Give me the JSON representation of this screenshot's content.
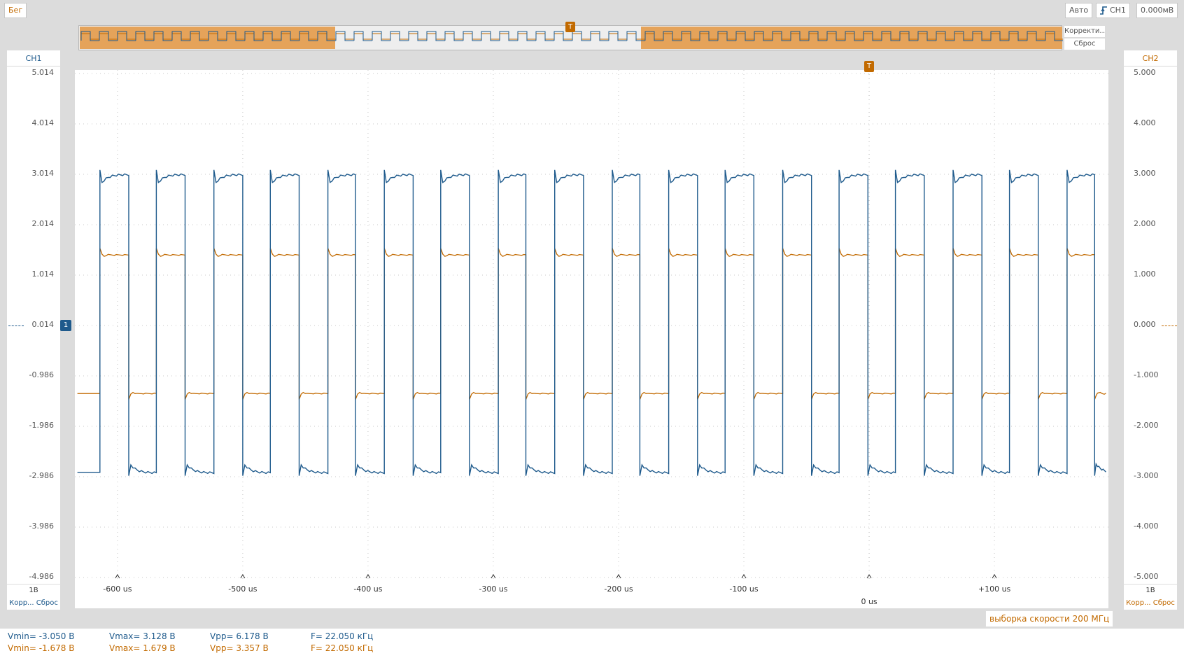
{
  "toolbar": {
    "run_label": "Бег",
    "mode_label": "Авто",
    "trigger_channel": "CH1",
    "trigger_level": "0.000мВ",
    "trigger_icon": "rising-edge-icon"
  },
  "overview": {
    "marker_label": "T",
    "correct_label": "Корректи...",
    "reset_label": "Сброс"
  },
  "channels": {
    "ch1": {
      "label": "CH1",
      "color": "#1e5a8c",
      "ticks": [
        "5.014",
        "4.014",
        "3.014",
        "2.014",
        "1.014",
        "0.014",
        "-0.986",
        "-1.986",
        "-2.986",
        "-3.986",
        "-4.986"
      ],
      "scale": "1В",
      "footer": "Корр... Сброс"
    },
    "ch2": {
      "label": "CH2",
      "color": "#c26a00",
      "ticks": [
        "5.000",
        "4.000",
        "3.000",
        "2.000",
        "1.000",
        "0.000",
        "-1.000",
        "-2.000",
        "-3.000",
        "-4.000",
        "-5.000"
      ],
      "scale": "1В",
      "footer": "Корр... Сброс"
    }
  },
  "plot": {
    "trigger_marker": "T",
    "ground_marker": "1"
  },
  "xaxis": {
    "labels": [
      "-600 us",
      "-500 us",
      "-400 us",
      "-300 us",
      "-200 us",
      "-100 us",
      "0 us",
      "+100 us"
    ]
  },
  "sample_rate": "выборка скорости 200 МГц",
  "measurements": {
    "ch1": {
      "vmin": "Vmin= -3.050 В",
      "vmax": "Vmax= 3.128 В",
      "vpp": "Vpp= 6.178 В",
      "f": "F= 22.050 кГц"
    },
    "ch2": {
      "vmin": "Vmin= -1.678 В",
      "vmax": "Vmax= 1.679 В",
      "vpp": "Vpp= 3.357 В",
      "f": "F= 22.050 кГц"
    }
  },
  "chart_data": {
    "type": "line",
    "x_unit": "us",
    "xlim": [
      -634,
      191
    ],
    "series": [
      {
        "name": "CH1",
        "color": "#1e5a8c",
        "ylim": [
          -4.986,
          5.014
        ],
        "high": 3.0,
        "low": -2.9
      },
      {
        "name": "CH2",
        "color": "#c26a00",
        "ylim": [
          -5.0,
          5.0
        ],
        "high": 1.4,
        "low": -1.35
      }
    ],
    "edges_us": [
      -614,
      -591,
      -569,
      -546,
      -523,
      -500,
      -478,
      -455,
      -432,
      -410,
      -387,
      -364,
      -342,
      -319,
      -296,
      -274,
      -251,
      -228,
      -205,
      -183,
      -160,
      -137,
      -115,
      -92,
      -69,
      -46,
      -24,
      -1,
      21,
      44,
      67,
      90,
      112,
      135,
      158,
      180
    ],
    "start_level": "low",
    "grid": true
  }
}
